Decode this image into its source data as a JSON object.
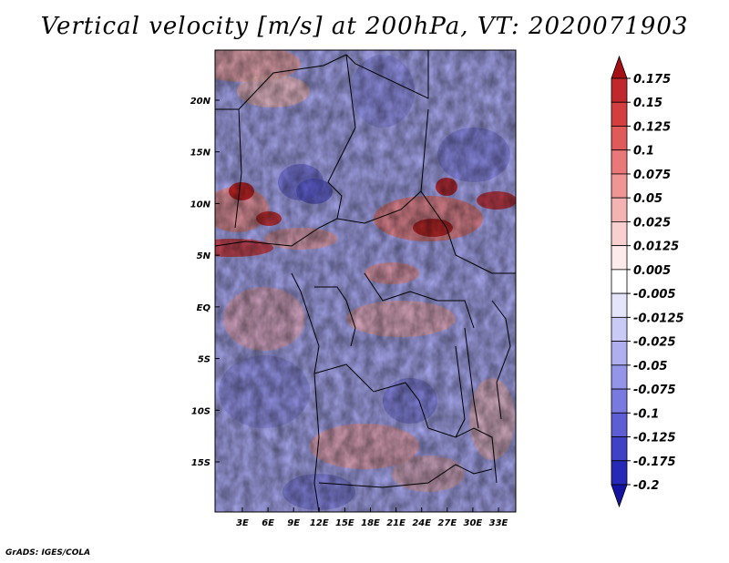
{
  "title": "Vertical velocity [m/s] at 200hPa, VT: 2020071903",
  "credit": "GrADS: IGES/COLA",
  "map": {
    "lat_labels": [
      "20N",
      "15N",
      "10N",
      "5N",
      "EQ",
      "5S",
      "10S",
      "15S"
    ],
    "lat_values": [
      20,
      15,
      10,
      5,
      0,
      -5,
      -10,
      -15
    ],
    "lon_labels": [
      "3E",
      "6E",
      "9E",
      "12E",
      "15E",
      "18E",
      "21E",
      "24E",
      "27E",
      "30E",
      "33E"
    ],
    "lon_values": [
      3,
      6,
      9,
      12,
      15,
      18,
      21,
      24,
      27,
      30,
      33
    ],
    "field_colors": {
      "background": "#a9a9f2",
      "positive": "#e98f8f",
      "strong_positive": "#c01818",
      "negative": "#7d7de3",
      "neutral": "#ffffff"
    }
  },
  "colorbar": {
    "levels": [
      "0.175",
      "0.15",
      "0.125",
      "0.1",
      "0.075",
      "0.05",
      "0.025",
      "0.0125",
      "0.005",
      "-0.005",
      "-0.0125",
      "-0.025",
      "-0.05",
      "-0.075",
      "-0.1",
      "-0.125",
      "-0.175",
      "-0.2"
    ],
    "colors": [
      "#a50f15",
      "#c0282c",
      "#d43e3e",
      "#e15a5a",
      "#ea7878",
      "#f09595",
      "#f5b2b2",
      "#f9cfcf",
      "#fdeaea",
      "#ffffff",
      "#e4e4fb",
      "#cacaf6",
      "#afafef",
      "#9494e8",
      "#7979df",
      "#5d5dd4",
      "#4141c7",
      "#2828b6",
      "#1414a0"
    ]
  }
}
